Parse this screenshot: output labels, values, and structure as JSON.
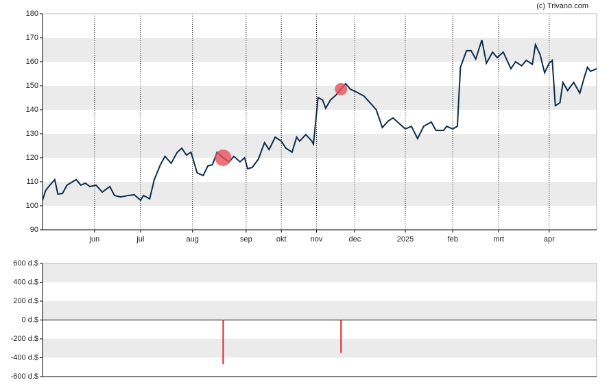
{
  "chart_data": [
    {
      "type": "line",
      "source": "(c) Trivano.com",
      "xlim": [
        0,
        362
      ],
      "ylim": [
        90,
        180
      ],
      "yticks": [
        90,
        100,
        110,
        120,
        130,
        140,
        150,
        160,
        170,
        180
      ],
      "xticks": [
        {
          "value": 34,
          "label": "jun"
        },
        {
          "value": 64,
          "label": "jul"
        },
        {
          "value": 98,
          "label": "aug"
        },
        {
          "value": 133,
          "label": "sep"
        },
        {
          "value": 156,
          "label": "okt"
        },
        {
          "value": 179,
          "label": "nov"
        },
        {
          "value": 204,
          "label": "dec"
        },
        {
          "value": 237,
          "label": "2025"
        },
        {
          "value": 268,
          "label": "feb"
        },
        {
          "value": 298,
          "label": "mrt"
        },
        {
          "value": 331,
          "label": "apr"
        }
      ],
      "grid": "bands",
      "color": "#0d2d4d",
      "x": [
        0,
        2,
        4,
        8,
        10,
        13,
        16,
        22,
        25,
        28,
        31,
        35,
        39,
        44,
        47,
        51,
        56,
        60,
        64,
        66,
        70,
        73,
        77,
        80,
        84,
        88,
        91,
        94,
        97,
        101,
        105,
        108,
        111,
        114,
        118,
        122,
        125,
        129,
        132,
        134,
        137,
        141,
        145,
        148,
        152,
        156,
        159,
        163,
        166,
        168,
        172,
        176,
        177,
        180,
        183,
        185,
        188,
        192,
        195,
        198,
        201,
        205,
        210,
        214,
        218,
        222,
        226,
        229,
        234,
        237,
        241,
        245,
        249,
        254,
        257,
        262,
        264,
        268,
        271,
        273,
        277,
        280,
        283,
        287,
        290,
        294,
        297,
        301,
        306,
        309,
        313,
        316,
        320,
        322,
        325,
        328,
        331,
        333,
        335,
        338,
        340,
        343,
        347,
        351,
        354,
        356,
        358,
        362
      ],
      "values": [
        102.3,
        106.3,
        108,
        110.9,
        104.9,
        105.1,
        108.6,
        110.9,
        108.6,
        109.4,
        108,
        108.6,
        105.7,
        108,
        104.3,
        103.7,
        104.3,
        104.6,
        102.3,
        104.3,
        102.9,
        110.9,
        117.1,
        120.6,
        117.7,
        122.3,
        124,
        121.1,
        122.3,
        113.7,
        112.6,
        116.6,
        117.1,
        122.3,
        120,
        118.3,
        120.6,
        118.3,
        120,
        115.4,
        116,
        119.4,
        126.3,
        123.4,
        128.6,
        126.9,
        124,
        122.3,
        128.6,
        126.9,
        129.7,
        126.9,
        125.7,
        145.1,
        144,
        140.6,
        144,
        146.3,
        148.6,
        150.9,
        148.6,
        147.4,
        145.7,
        142.9,
        140,
        132.6,
        135.4,
        136.6,
        133.7,
        132,
        133.1,
        128,
        133.1,
        134.9,
        131.4,
        131.4,
        133.1,
        132,
        133.1,
        157.7,
        164.6,
        164.6,
        161.1,
        169.1,
        159.4,
        164,
        161.7,
        164,
        157.1,
        160,
        158.3,
        160.6,
        158.9,
        167.1,
        163.1,
        155.4,
        159.4,
        160.6,
        141.7,
        142.9,
        151.4,
        148,
        151.4,
        146.9,
        153.7,
        157.7,
        156,
        157.1
      ],
      "markers": {
        "color": "#e8505b",
        "x": [
          118,
          195
        ],
        "values": [
          120,
          148.6
        ]
      }
    },
    {
      "type": "bar",
      "xlim": [
        0,
        362
      ],
      "ylim": [
        -600,
        600
      ],
      "yticks": [
        {
          "value": 600,
          "label": "600 d.$"
        },
        {
          "value": 400,
          "label": "400 d.$"
        },
        {
          "value": 200,
          "label": "200 d.$"
        },
        {
          "value": 0,
          "label": "0 d.$"
        },
        {
          "value": -200,
          "label": "-200 d.$"
        },
        {
          "value": -400,
          "label": "-400 d.$"
        },
        {
          "value": -600,
          "label": "-600 d.$"
        }
      ],
      "grid": "bands",
      "color": "#e8202a",
      "x": [
        118,
        195
      ],
      "values": [
        -470,
        -350
      ]
    }
  ]
}
